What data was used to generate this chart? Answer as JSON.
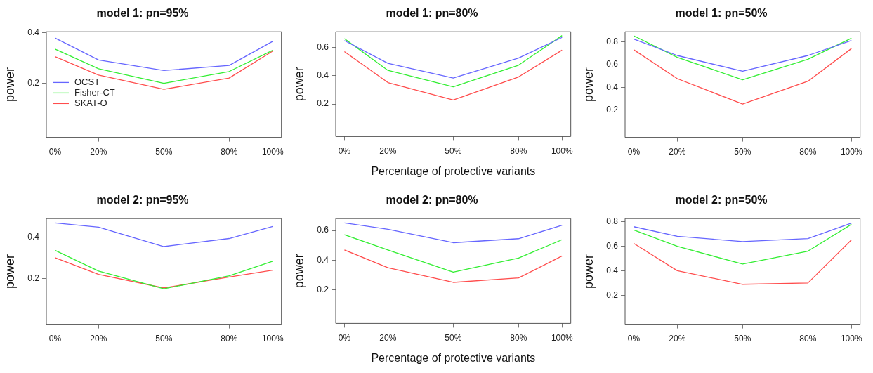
{
  "chart_data": [
    {
      "type": "line",
      "title": "model 1: pn=95%",
      "ylabel": "power",
      "x": [
        0,
        20,
        50,
        80,
        100
      ],
      "xlim": [
        -4,
        104
      ],
      "xticks": [
        {
          "value": 0,
          "label": "0%"
        },
        {
          "value": 20,
          "label": "20%"
        },
        {
          "value": 50,
          "label": "50%"
        },
        {
          "value": 80,
          "label": "80%"
        },
        {
          "value": 100,
          "label": "100%"
        }
      ],
      "ylim": [
        -0.015,
        0.405
      ],
      "yticks": [
        0.2,
        0.4
      ],
      "grid": false,
      "legend": "left",
      "series": [
        {
          "name": "OCST",
          "color": "#6666ff",
          "values": [
            0.38,
            0.293,
            0.251,
            0.271,
            0.367
          ]
        },
        {
          "name": "Fisher-CT",
          "color": "#33ee33",
          "values": [
            0.336,
            0.258,
            0.2,
            0.247,
            0.331
          ]
        },
        {
          "name": "SKAT-O",
          "color": "#ff4d4d",
          "values": [
            0.306,
            0.233,
            0.176,
            0.221,
            0.328
          ]
        }
      ]
    },
    {
      "type": "line",
      "title": "model 1: pn=80%",
      "ylabel": "power",
      "xlabel": "Percentage of protective variants",
      "x": [
        0,
        20,
        50,
        80,
        100
      ],
      "xlim": [
        -4,
        104
      ],
      "xticks": [
        {
          "value": 0,
          "label": "0%"
        },
        {
          "value": 20,
          "label": "20%"
        },
        {
          "value": 50,
          "label": "50%"
        },
        {
          "value": 80,
          "label": "80%"
        },
        {
          "value": 100,
          "label": "100%"
        }
      ],
      "ylim": [
        -0.03,
        0.71
      ],
      "yticks": [
        0.2,
        0.4,
        0.6
      ],
      "grid": false,
      "series": [
        {
          "color": "#6666ff",
          "values": [
            0.648,
            0.487,
            0.383,
            0.524,
            0.67
          ]
        },
        {
          "color": "#33ee33",
          "values": [
            0.661,
            0.437,
            0.321,
            0.474,
            0.683
          ]
        },
        {
          "color": "#ff4d4d",
          "values": [
            0.57,
            0.351,
            0.228,
            0.391,
            0.58
          ]
        }
      ]
    },
    {
      "type": "line",
      "title": "model 1: pn=50%",
      "ylabel": "power",
      "x": [
        0,
        20,
        50,
        80,
        100
      ],
      "xlim": [
        -4,
        104
      ],
      "xticks": [
        {
          "value": 0,
          "label": "0%"
        },
        {
          "value": 20,
          "label": "20%"
        },
        {
          "value": 50,
          "label": "50%"
        },
        {
          "value": 80,
          "label": "80%"
        },
        {
          "value": 100,
          "label": "100%"
        }
      ],
      "ylim": [
        -0.04,
        0.89
      ],
      "yticks": [
        0.2,
        0.4,
        0.6,
        0.8
      ],
      "grid": false,
      "series": [
        {
          "color": "#6666ff",
          "values": [
            0.825,
            0.681,
            0.542,
            0.681,
            0.813
          ]
        },
        {
          "color": "#33ee33",
          "values": [
            0.854,
            0.665,
            0.467,
            0.648,
            0.833
          ]
        },
        {
          "color": "#ff4d4d",
          "values": [
            0.731,
            0.477,
            0.254,
            0.454,
            0.742
          ]
        }
      ]
    },
    {
      "type": "line",
      "title": "model 2: pn=95%",
      "ylabel": "power",
      "x": [
        0,
        20,
        50,
        80,
        100
      ],
      "xlim": [
        -4,
        104
      ],
      "xticks": [
        {
          "value": 0,
          "label": "0%"
        },
        {
          "value": 20,
          "label": "20%"
        },
        {
          "value": 50,
          "label": "50%"
        },
        {
          "value": 80,
          "label": "80%"
        },
        {
          "value": 100,
          "label": "100%"
        }
      ],
      "ylim": [
        -0.02,
        0.49
      ],
      "yticks": [
        0.2,
        0.4
      ],
      "grid": false,
      "series": [
        {
          "color": "#6666ff",
          "values": [
            0.469,
            0.449,
            0.355,
            0.394,
            0.452
          ]
        },
        {
          "color": "#33ee33",
          "values": [
            0.337,
            0.237,
            0.151,
            0.214,
            0.284
          ]
        },
        {
          "color": "#ff4d4d",
          "values": [
            0.301,
            0.221,
            0.155,
            0.208,
            0.241
          ]
        }
      ]
    },
    {
      "type": "line",
      "title": "model 2: pn=80%",
      "ylabel": "power",
      "xlabel": "Percentage of protective variants",
      "x": [
        0,
        20,
        50,
        80,
        100
      ],
      "xlim": [
        -4,
        104
      ],
      "xticks": [
        {
          "value": 0,
          "label": "0%"
        },
        {
          "value": 20,
          "label": "20%"
        },
        {
          "value": 50,
          "label": "50%"
        },
        {
          "value": 80,
          "label": "80%"
        },
        {
          "value": 100,
          "label": "100%"
        }
      ],
      "ylim": [
        -0.025,
        0.68
      ],
      "yticks": [
        0.2,
        0.4,
        0.6
      ],
      "grid": false,
      "series": [
        {
          "color": "#6666ff",
          "values": [
            0.651,
            0.608,
            0.518,
            0.545,
            0.635
          ]
        },
        {
          "color": "#33ee33",
          "values": [
            0.572,
            0.469,
            0.32,
            0.415,
            0.538
          ]
        },
        {
          "color": "#ff4d4d",
          "values": [
            0.469,
            0.35,
            0.251,
            0.281,
            0.429
          ]
        }
      ]
    },
    {
      "type": "line",
      "title": "model 2: pn=50%",
      "ylabel": "power",
      "x": [
        0,
        20,
        50,
        80,
        100
      ],
      "xlim": [
        -4,
        104
      ],
      "xticks": [
        {
          "value": 0,
          "label": "0%"
        },
        {
          "value": 20,
          "label": "20%"
        },
        {
          "value": 50,
          "label": "50%"
        },
        {
          "value": 80,
          "label": "80%"
        },
        {
          "value": 100,
          "label": "100%"
        }
      ],
      "ylim": [
        -0.035,
        0.825
      ],
      "yticks": [
        0.2,
        0.4,
        0.6,
        0.8
      ],
      "grid": false,
      "series": [
        {
          "color": "#6666ff",
          "values": [
            0.759,
            0.681,
            0.638,
            0.662,
            0.788
          ]
        },
        {
          "color": "#33ee33",
          "values": [
            0.732,
            0.599,
            0.455,
            0.56,
            0.778
          ]
        },
        {
          "color": "#ff4d4d",
          "values": [
            0.623,
            0.401,
            0.29,
            0.301,
            0.652
          ]
        }
      ]
    }
  ]
}
